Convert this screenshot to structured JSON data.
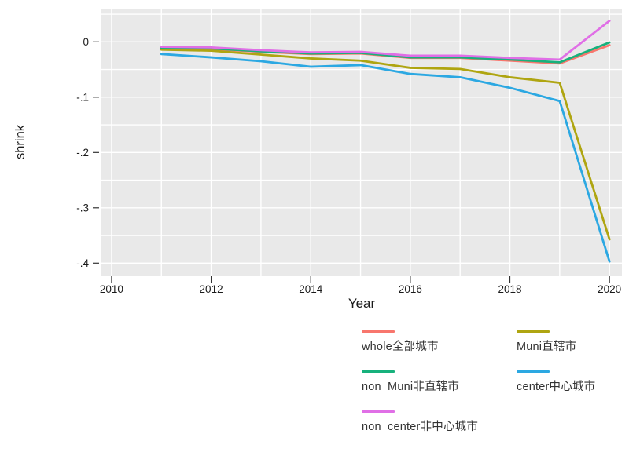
{
  "chart_data": {
    "type": "line",
    "title": "",
    "xlabel": "Year",
    "ylabel": "shrink",
    "x": [
      2011,
      2012,
      2013,
      2014,
      2015,
      2016,
      2017,
      2018,
      2019,
      2020
    ],
    "series": [
      {
        "name": "whole",
        "label": "whole全部城市",
        "color": "#F8766D",
        "values": [
          -0.012,
          -0.013,
          -0.018,
          -0.022,
          -0.021,
          -0.029,
          -0.029,
          -0.034,
          -0.039,
          -0.006
        ]
      },
      {
        "name": "Muni",
        "label": "Muni直辖市",
        "color": "#AFA511",
        "values": [
          -0.014,
          -0.016,
          -0.023,
          -0.03,
          -0.034,
          -0.047,
          -0.049,
          -0.064,
          -0.074,
          -0.357
        ]
      },
      {
        "name": "non_Muni",
        "label": "non_Muni非直辖市",
        "color": "#17B17C",
        "values": [
          -0.011,
          -0.012,
          -0.017,
          -0.021,
          -0.02,
          -0.028,
          -0.028,
          -0.032,
          -0.037,
          -0.001
        ]
      },
      {
        "name": "center",
        "label": "center中心城市",
        "color": "#2CA8E2",
        "values": [
          -0.022,
          -0.028,
          -0.035,
          -0.045,
          -0.042,
          -0.058,
          -0.064,
          -0.083,
          -0.107,
          -0.397
        ]
      },
      {
        "name": "non_center",
        "label": "non_center非中心城市",
        "color": "#E06FE6",
        "values": [
          -0.009,
          -0.01,
          -0.015,
          -0.019,
          -0.018,
          -0.025,
          -0.025,
          -0.029,
          -0.032,
          0.038
        ]
      }
    ],
    "x_ticks": [
      {
        "v": 2010,
        "label": "2010"
      },
      {
        "v": 2012,
        "label": "2012"
      },
      {
        "v": 2014,
        "label": "2014"
      },
      {
        "v": 2016,
        "label": "2016"
      },
      {
        "v": 2018,
        "label": "2018"
      },
      {
        "v": 2020,
        "label": "2020"
      }
    ],
    "y_ticks": [
      {
        "v": 0,
        "label": "0"
      },
      {
        "v": -0.1,
        "label": "-.1"
      },
      {
        "v": -0.2,
        "label": "-.2"
      },
      {
        "v": -0.3,
        "label": "-.3"
      },
      {
        "v": -0.4,
        "label": "-.4"
      }
    ],
    "x_range": [
      2009.78,
      2020.25
    ],
    "y_range": [
      -0.4237,
      0.0586
    ],
    "grid": {
      "x_step": 1,
      "y_step": 0.05,
      "color": "#FFFFFF",
      "on": true
    },
    "plot_bg": "#E9E9E9",
    "tick_color": "#333333",
    "label_color": "#1A1A1A",
    "legend_position": "bottom"
  }
}
